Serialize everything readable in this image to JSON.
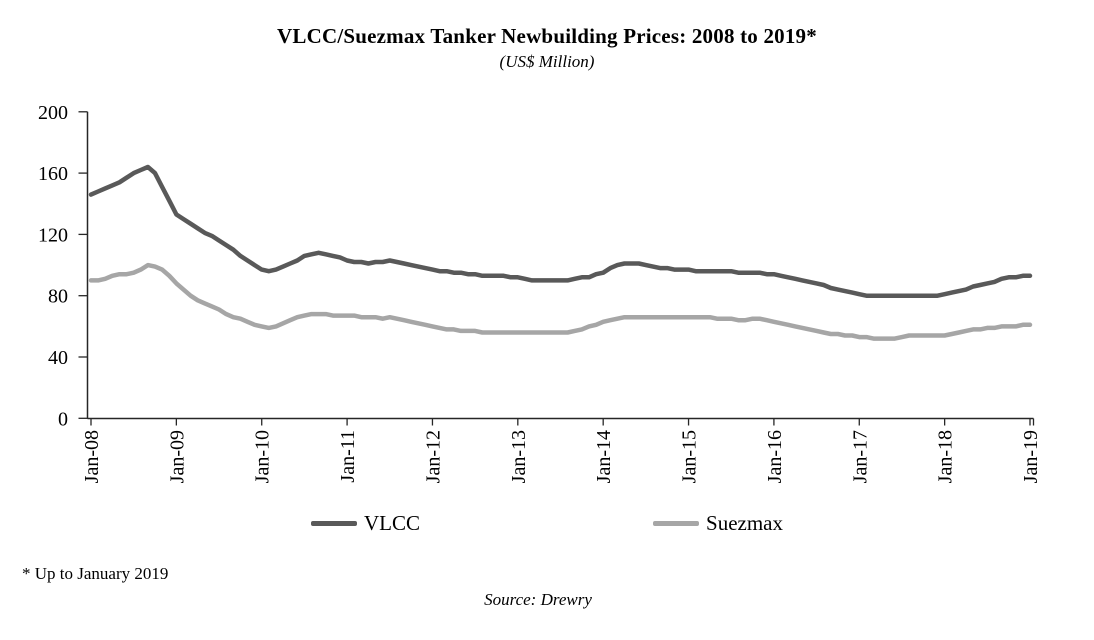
{
  "chart_data": {
    "type": "line",
    "title": "VLCC/Suezmax Tanker Newbuilding Prices: 2008 to 2019*",
    "subtitle": "(US$ Million)",
    "footnote": "* Up to January 2019",
    "source": "Source: Drewry",
    "x_unit": "month",
    "x_start": "Jan-08",
    "x_end": "Jan-19",
    "x_tick_labels": [
      "Jan-08",
      "Jan-09",
      "Jan-10",
      "Jan-11",
      "Jan-12",
      "Jan-13",
      "Jan-14",
      "Jan-15",
      "Jan-16",
      "Jan-17",
      "Jan-18",
      "Jan-19"
    ],
    "x_tick_interval_months": 12,
    "ylim": [
      0,
      200
    ],
    "y_ticks": [
      0,
      40,
      80,
      120,
      160,
      200
    ],
    "grid": false,
    "legend_position": "bottom",
    "axis_color": "#262626",
    "series": [
      {
        "name": "VLCC",
        "color": "#595959",
        "values": [
          146,
          148,
          150,
          152,
          154,
          157,
          160,
          162,
          164,
          160,
          151,
          142,
          133,
          130,
          127,
          124,
          121,
          119,
          116,
          113,
          110,
          106,
          103,
          100,
          97,
          96,
          97,
          99,
          101,
          103,
          106,
          107,
          108,
          107,
          106,
          105,
          103,
          102,
          102,
          101,
          102,
          102,
          103,
          102,
          101,
          100,
          99,
          98,
          97,
          96,
          96,
          95,
          95,
          94,
          94,
          93,
          93,
          93,
          93,
          92,
          92,
          91,
          90,
          90,
          90,
          90,
          90,
          90,
          91,
          92,
          92,
          94,
          95,
          98,
          100,
          101,
          101,
          101,
          100,
          99,
          98,
          98,
          97,
          97,
          97,
          96,
          96,
          96,
          96,
          96,
          96,
          95,
          95,
          95,
          95,
          94,
          94,
          93,
          92,
          91,
          90,
          89,
          88,
          87,
          85,
          84,
          83,
          82,
          81,
          80,
          80,
          80,
          80,
          80,
          80,
          80,
          80,
          80,
          80,
          80,
          81,
          82,
          83,
          84,
          86,
          87,
          88,
          89,
          91,
          92,
          92,
          93,
          93
        ]
      },
      {
        "name": "Suezmax",
        "color": "#A6A6A6",
        "values": [
          90,
          90,
          91,
          93,
          94,
          94,
          95,
          97,
          100,
          99,
          97,
          93,
          88,
          84,
          80,
          77,
          75,
          73,
          71,
          68,
          66,
          65,
          63,
          61,
          60,
          59,
          60,
          62,
          64,
          66,
          67,
          68,
          68,
          68,
          67,
          67,
          67,
          67,
          66,
          66,
          66,
          65,
          66,
          65,
          64,
          63,
          62,
          61,
          60,
          59,
          58,
          58,
          57,
          57,
          57,
          56,
          56,
          56,
          56,
          56,
          56,
          56,
          56,
          56,
          56,
          56,
          56,
          56,
          57,
          58,
          60,
          61,
          63,
          64,
          65,
          66,
          66,
          66,
          66,
          66,
          66,
          66,
          66,
          66,
          66,
          66,
          66,
          66,
          65,
          65,
          65,
          64,
          64,
          65,
          65,
          64,
          63,
          62,
          61,
          60,
          59,
          58,
          57,
          56,
          55,
          55,
          54,
          54,
          53,
          53,
          52,
          52,
          52,
          52,
          53,
          54,
          54,
          54,
          54,
          54,
          54,
          55,
          56,
          57,
          58,
          58,
          59,
          59,
          60,
          60,
          60,
          61,
          61
        ]
      }
    ]
  }
}
